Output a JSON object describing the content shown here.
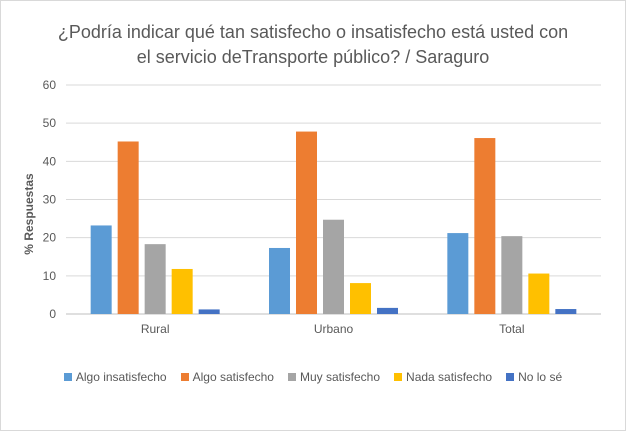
{
  "chart_data": {
    "type": "bar",
    "title_line1": "¿Podría indicar qué tan satisfecho o insatisfecho está usted con",
    "title_line2": "el servicio deTransporte público? / Saraguro",
    "ylabel": "% Respuestas",
    "xlabel": "",
    "ylim": [
      0,
      60
    ],
    "yticks": [
      "0",
      "10",
      "20",
      "30",
      "40",
      "50",
      "60"
    ],
    "categories": [
      "Rural",
      "Urbano",
      "Total"
    ],
    "grid": true,
    "legend_position": "bottom",
    "series": [
      {
        "name": "Algo insatisfecho",
        "color": "#5b9bd5",
        "values": [
          23.2,
          17.3,
          21.2
        ]
      },
      {
        "name": "Algo satisfecho",
        "color": "#ed7d31",
        "values": [
          45.2,
          47.8,
          46.1
        ]
      },
      {
        "name": "Muy satisfecho",
        "color": "#a5a5a5",
        "values": [
          18.3,
          24.7,
          20.4
        ]
      },
      {
        "name": "Nada satisfecho",
        "color": "#ffc000",
        "values": [
          11.8,
          8.1,
          10.6
        ]
      },
      {
        "name": "No lo sé",
        "color": "#4472c4",
        "values": [
          1.2,
          1.6,
          1.3
        ]
      }
    ]
  }
}
